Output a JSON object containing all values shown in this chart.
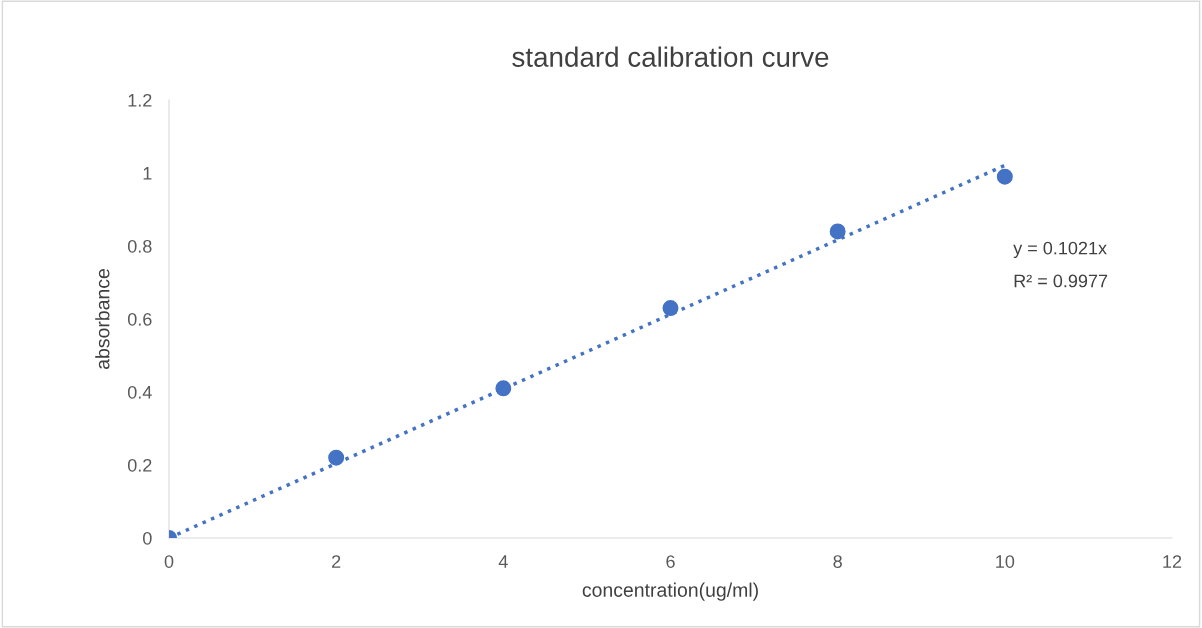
{
  "chart_data": {
    "type": "scatter",
    "title": "standard calibration curve",
    "xlabel": "concentration(ug/ml)",
    "ylabel": "absorbance",
    "series": [
      {
        "color": "#4472c4",
        "marker": "circle",
        "x": [
          0,
          2,
          4,
          6,
          8,
          10
        ],
        "values": [
          0,
          0.22,
          0.41,
          0.63,
          0.84,
          0.99
        ]
      },
      {
        "type": "line",
        "color": "#4472c4",
        "marker": "none",
        "line_style": "dotted",
        "x": [
          0,
          10
        ],
        "values": [
          0,
          1.021
        ]
      }
    ],
    "xlim": [
      0,
      12
    ],
    "xticks": [
      0,
      2,
      4,
      6,
      8,
      10,
      12
    ],
    "ylim": [
      0,
      1.2
    ],
    "yticks": [
      0,
      0.2,
      0.4,
      0.6,
      0.8,
      1,
      1.2
    ],
    "grid": false,
    "legend": false,
    "annotations": [
      "y = 0.1021x",
      "R² = 0.9977"
    ]
  }
}
